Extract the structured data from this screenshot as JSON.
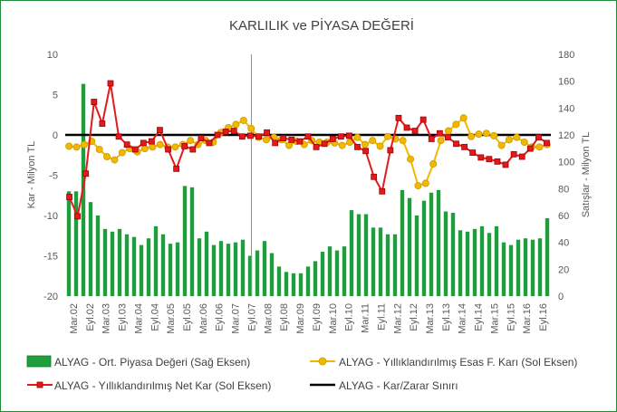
{
  "chart_data": {
    "type": "combo",
    "title": "KARLILIK ve PİYASA DEĞERİ",
    "ylabel_left": "Kar - Milyon TL",
    "ylabel_right": "Satışlar - Milyon TL",
    "ylim_left": [
      -20,
      10
    ],
    "ylim_right": [
      0,
      180
    ],
    "yticks_left": [
      10,
      5,
      0,
      -5,
      -10,
      -15,
      -20
    ],
    "yticks_right": [
      180,
      160,
      140,
      120,
      100,
      80,
      60,
      40,
      20,
      0
    ],
    "xtick_labels": [
      "Mar.02",
      "Eyl.02",
      "Mar.03",
      "Eyl.03",
      "Mar.04",
      "Eyl.04",
      "Mar.05",
      "Eyl.05",
      "Mar.06",
      "Eyl.06",
      "Mar.07",
      "Eyl.07",
      "Mar.08",
      "Eyl.08",
      "Mar.09",
      "Eyl.09",
      "Mar.10",
      "Eyl.10",
      "Mar.11",
      "Eyl.11",
      "Mar.12",
      "Eyl.12",
      "Mar.13",
      "Eyl.13",
      "Mar.14",
      "Eyl.14",
      "Mar.15",
      "Eyl.15",
      "Mar.16",
      "Eyl.16"
    ],
    "grid": false,
    "legend_position": "bottom",
    "colors": {
      "bars": "#1e9e3c",
      "esas": "#f2b800",
      "net": "#e31a1c",
      "line": "#000000",
      "vline": "#5b9bd5",
      "frame": "#1e8c3a"
    },
    "series": [
      {
        "name": "ALYAG - Ort. Piyasa Değeri (Sağ Eksen)",
        "type": "bar",
        "axis": "right",
        "values": [
          78,
          78,
          158,
          70,
          60,
          50,
          48,
          50,
          46,
          44,
          38,
          43,
          52,
          46,
          39,
          40,
          82,
          81,
          43,
          48,
          38,
          41,
          39,
          40,
          42,
          30,
          34,
          41,
          32,
          22,
          18,
          17,
          17,
          22,
          26,
          33,
          37,
          34,
          37,
          64,
          61,
          61,
          51,
          51,
          46,
          46,
          79,
          73,
          60,
          71,
          77,
          79,
          63,
          62,
          49,
          48,
          50,
          52,
          47,
          52,
          40,
          38,
          42,
          43,
          42,
          43,
          58
        ]
      },
      {
        "name": "ALYAG - Yıllıklandırılmış Esas F. Karı (Sol Eksen)",
        "type": "line",
        "axis": "left",
        "values": [
          -1.4,
          -1.5,
          -1.2,
          -0.8,
          -1.8,
          -2.7,
          -3.1,
          -2.2,
          -1.7,
          -2.1,
          -1.7,
          -1.5,
          -1.2,
          -1.5,
          -1.5,
          -1.2,
          -0.7,
          -1.2,
          -0.7,
          -0.9,
          0.3,
          0.9,
          1.3,
          1.8,
          0.8,
          -0.3,
          -0.6,
          -0.3,
          -0.6,
          -1.3,
          -0.8,
          -1.2,
          -0.7,
          -0.9,
          -0.9,
          -1.0,
          -1.3,
          -0.9,
          -0.3,
          -1.2,
          -0.7,
          -1.4,
          -0.2,
          -0.5,
          -0.7,
          -3.0,
          -6.3,
          -6.0,
          -3.6,
          -0.7,
          0.5,
          1.3,
          2.1,
          -0.2,
          0.1,
          0.2,
          -0.1,
          -1.3,
          -0.6,
          -0.3,
          -0.9,
          -1.5,
          -1.5,
          -1.2
        ]
      },
      {
        "name": "ALYAG - Yıllıklandırılmış Net Kar (Sol Eksen)",
        "type": "line",
        "axis": "left",
        "values": [
          -7.7,
          -10.1,
          -4.8,
          4.1,
          1.4,
          6.4,
          -0.2,
          -1.2,
          -1.8,
          -1.0,
          -0.8,
          0.6,
          -1.8,
          -4.2,
          -1.4,
          -1.8,
          -0.4,
          -1.0,
          0.0,
          0.4,
          0.5,
          -0.2,
          -0.1,
          -0.2,
          0.3,
          -1.0,
          -0.4,
          -0.6,
          -0.8,
          -0.2,
          -1.5,
          -1.1,
          -0.5,
          -0.2,
          -0.1,
          -1.5,
          -2.0,
          -5.2,
          -7.0,
          -1.9,
          2.1,
          0.9,
          0.5,
          1.9,
          -0.5,
          0.2,
          -0.3,
          -1.1,
          -1.5,
          -2.2,
          -2.8,
          -3.0,
          -3.3,
          -3.7,
          -2.4,
          -2.7,
          -1.7,
          -0.3,
          -1.0
        ]
      },
      {
        "name": "ALYAG - Kar/Zarar Sınırı",
        "type": "line",
        "axis": "left",
        "values": [
          0,
          0
        ]
      }
    ],
    "legend": [
      "ALYAG - Ort. Piyasa Değeri (Sağ Eksen)",
      "ALYAG - Yıllıklandırılmış Esas F. Karı (Sol Eksen)",
      "ALYAG - Yıllıklandırılmış Net Kar (Sol Eksen)",
      "ALYAG - Kar/Zarar Sınırı"
    ]
  }
}
